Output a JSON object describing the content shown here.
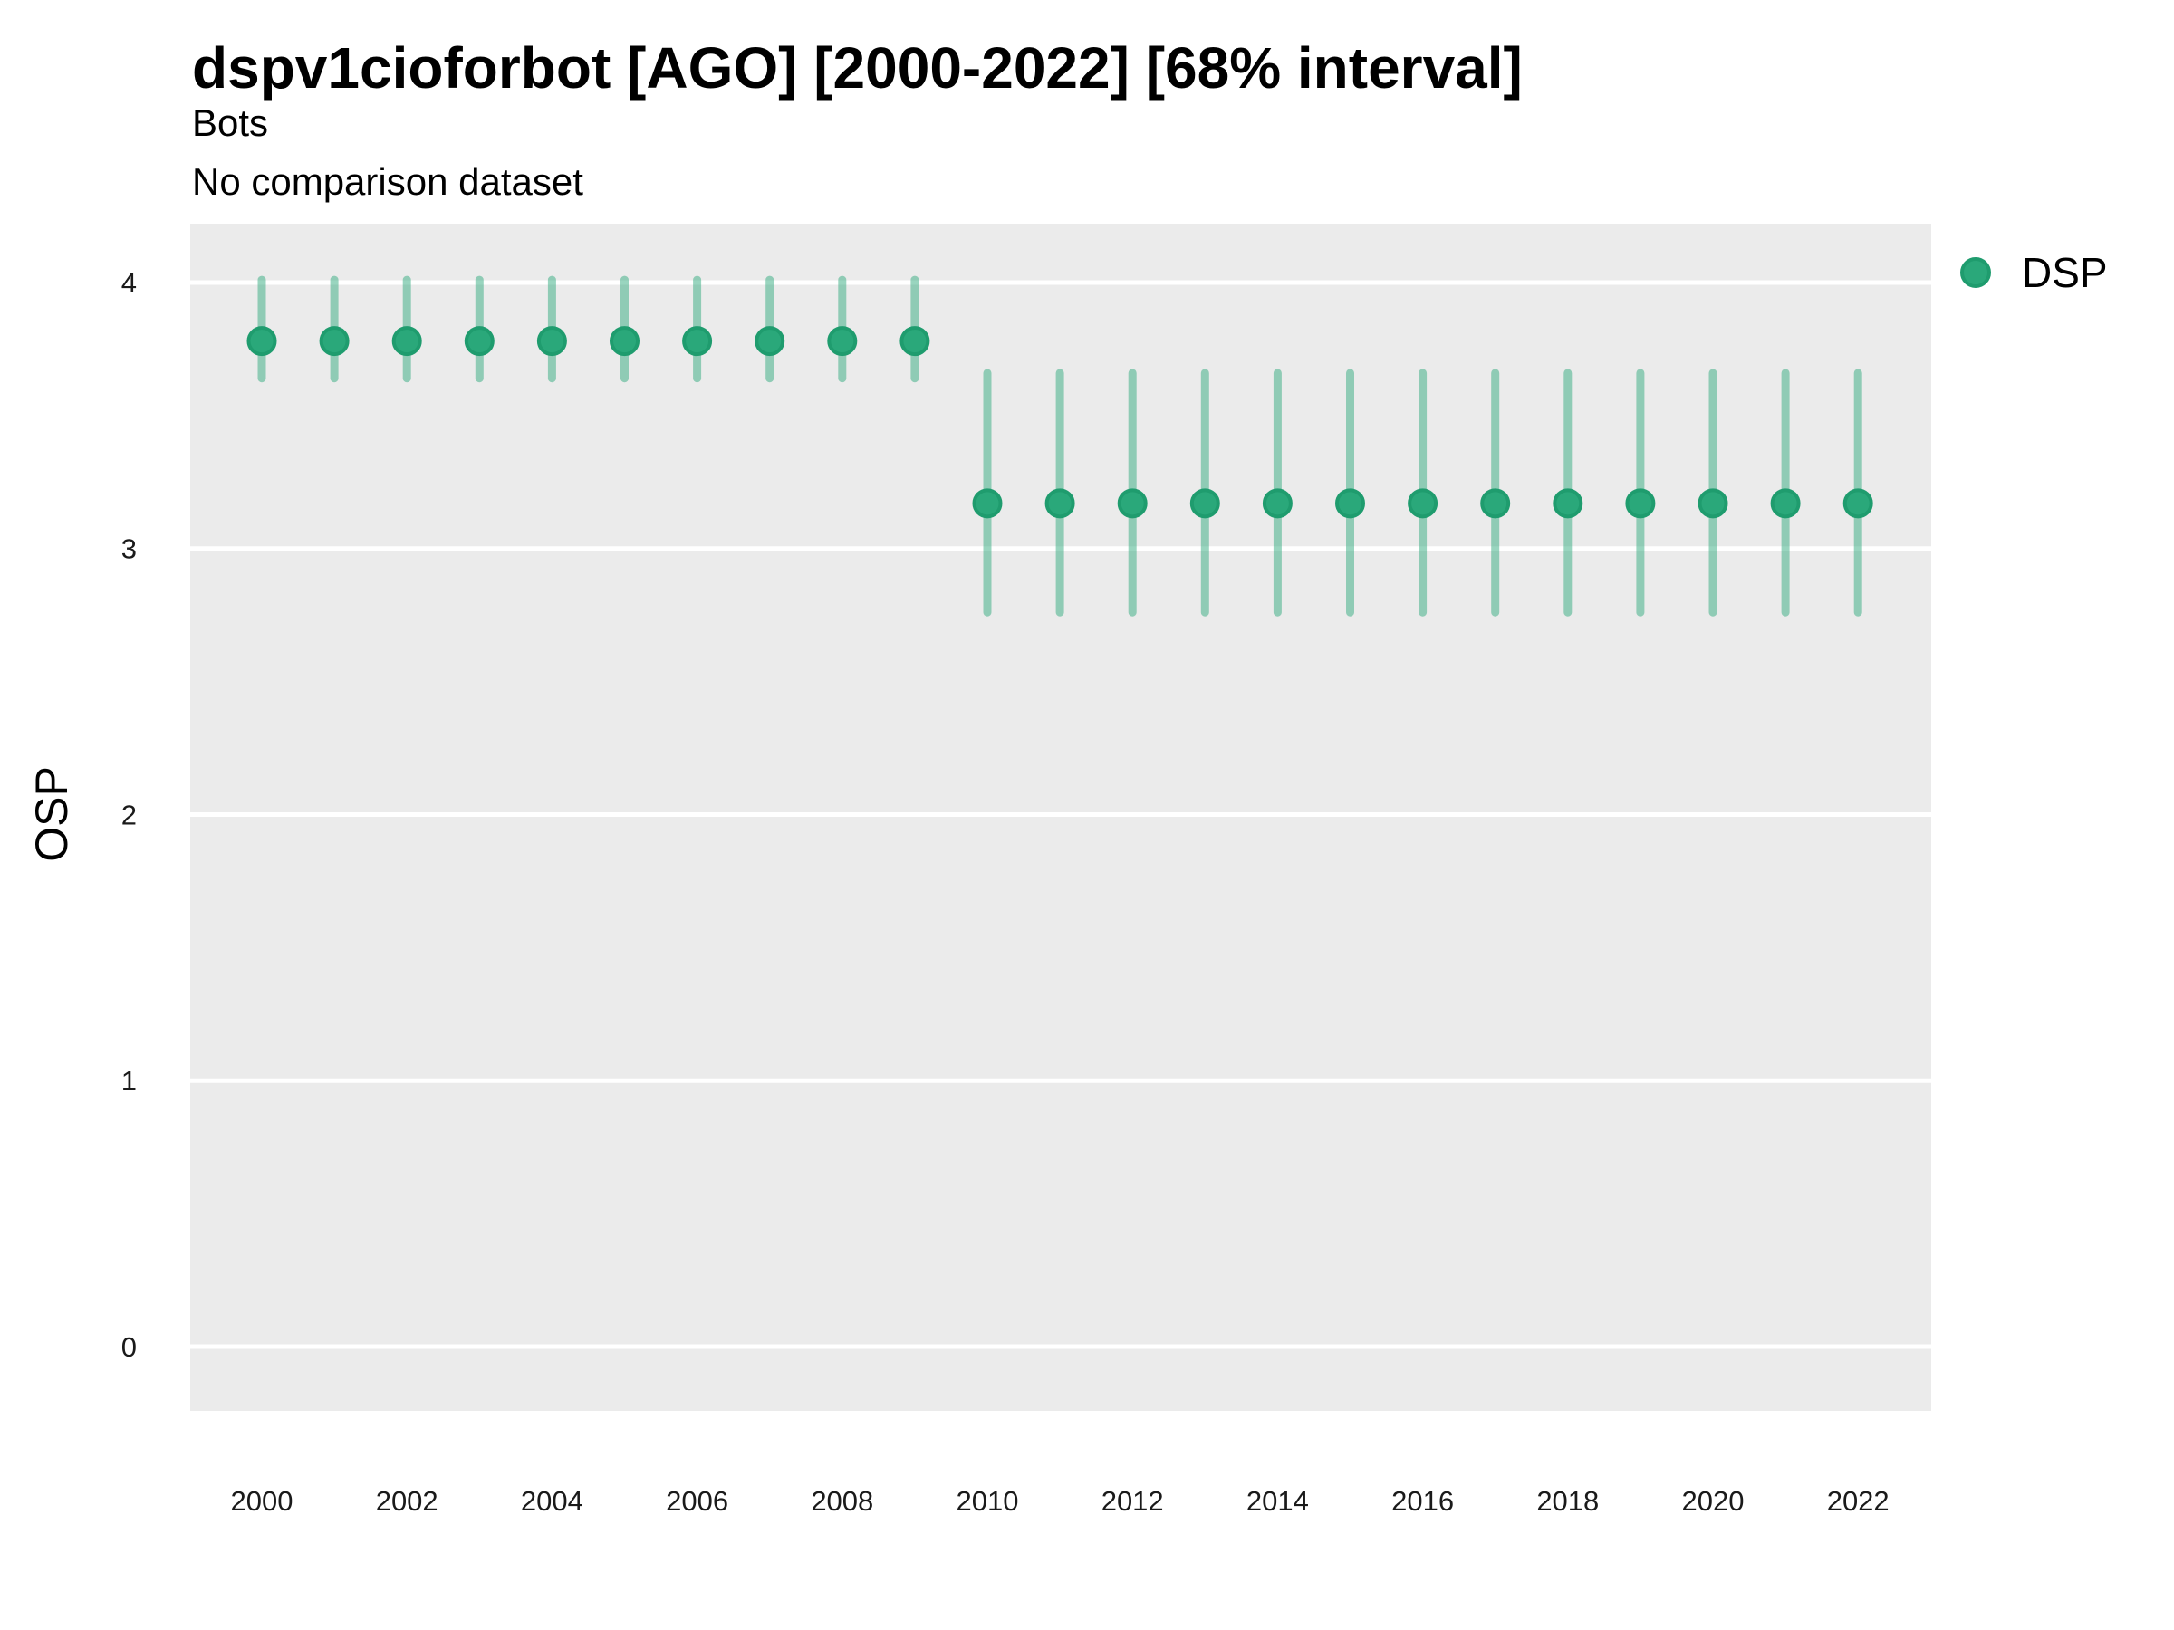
{
  "chart": {
    "title": "dspv1cioforbot [AGO] [2000-2022] [68% interval]",
    "subtitle1": "Bots",
    "subtitle2": "No comparison dataset",
    "y_axis_label": "OSP",
    "legend_label": "DSP"
  },
  "colors": {
    "panel_bg": "#ebebeb",
    "grid_line": "#ffffff",
    "point_fill": "#2aa87a",
    "point_stroke": "#1f9c6e",
    "interval_stroke": "rgba(42,168,122,0.48)",
    "text": "#000000",
    "tick_text": "#1a1a1a"
  },
  "chart_data": {
    "type": "scatter",
    "title": "dspv1cioforbot [AGO] [2000-2022] [68% interval]",
    "subtitle": [
      "Bots",
      "No comparison dataset"
    ],
    "xlabel": "",
    "ylabel": "OSP",
    "interval": "68%",
    "grid": "horizontal-major-only",
    "legend_position": "right",
    "legend_entries": [
      "DSP"
    ],
    "x_ticks": [
      2000,
      2002,
      2004,
      2006,
      2008,
      2010,
      2012,
      2014,
      2016,
      2018,
      2020,
      2022
    ],
    "y_ticks": [
      0,
      1,
      2,
      3,
      4
    ],
    "ylim": [
      -0.24,
      4.22
    ],
    "xlim": [
      1999,
      2023
    ],
    "series": [
      {
        "name": "DSP",
        "x": [
          2000,
          2001,
          2002,
          2003,
          2004,
          2005,
          2006,
          2007,
          2008,
          2009,
          2010,
          2011,
          2012,
          2013,
          2014,
          2015,
          2016,
          2017,
          2018,
          2019,
          2020,
          2021,
          2022
        ],
        "y": [
          3.78,
          3.78,
          3.78,
          3.78,
          3.78,
          3.78,
          3.78,
          3.78,
          3.78,
          3.78,
          3.17,
          3.17,
          3.17,
          3.17,
          3.17,
          3.17,
          3.17,
          3.17,
          3.17,
          3.17,
          3.17,
          3.17,
          3.17
        ],
        "y_lo": [
          3.64,
          3.64,
          3.64,
          3.64,
          3.64,
          3.64,
          3.64,
          3.64,
          3.64,
          3.64,
          2.76,
          2.76,
          2.76,
          2.76,
          2.76,
          2.76,
          2.76,
          2.76,
          2.76,
          2.76,
          2.76,
          2.76,
          2.76
        ],
        "y_hi": [
          4.01,
          4.01,
          4.01,
          4.01,
          4.01,
          4.01,
          4.01,
          4.01,
          4.01,
          4.01,
          3.66,
          3.66,
          3.66,
          3.66,
          3.66,
          3.66,
          3.66,
          3.66,
          3.66,
          3.66,
          3.66,
          3.66,
          3.66
        ]
      }
    ]
  }
}
